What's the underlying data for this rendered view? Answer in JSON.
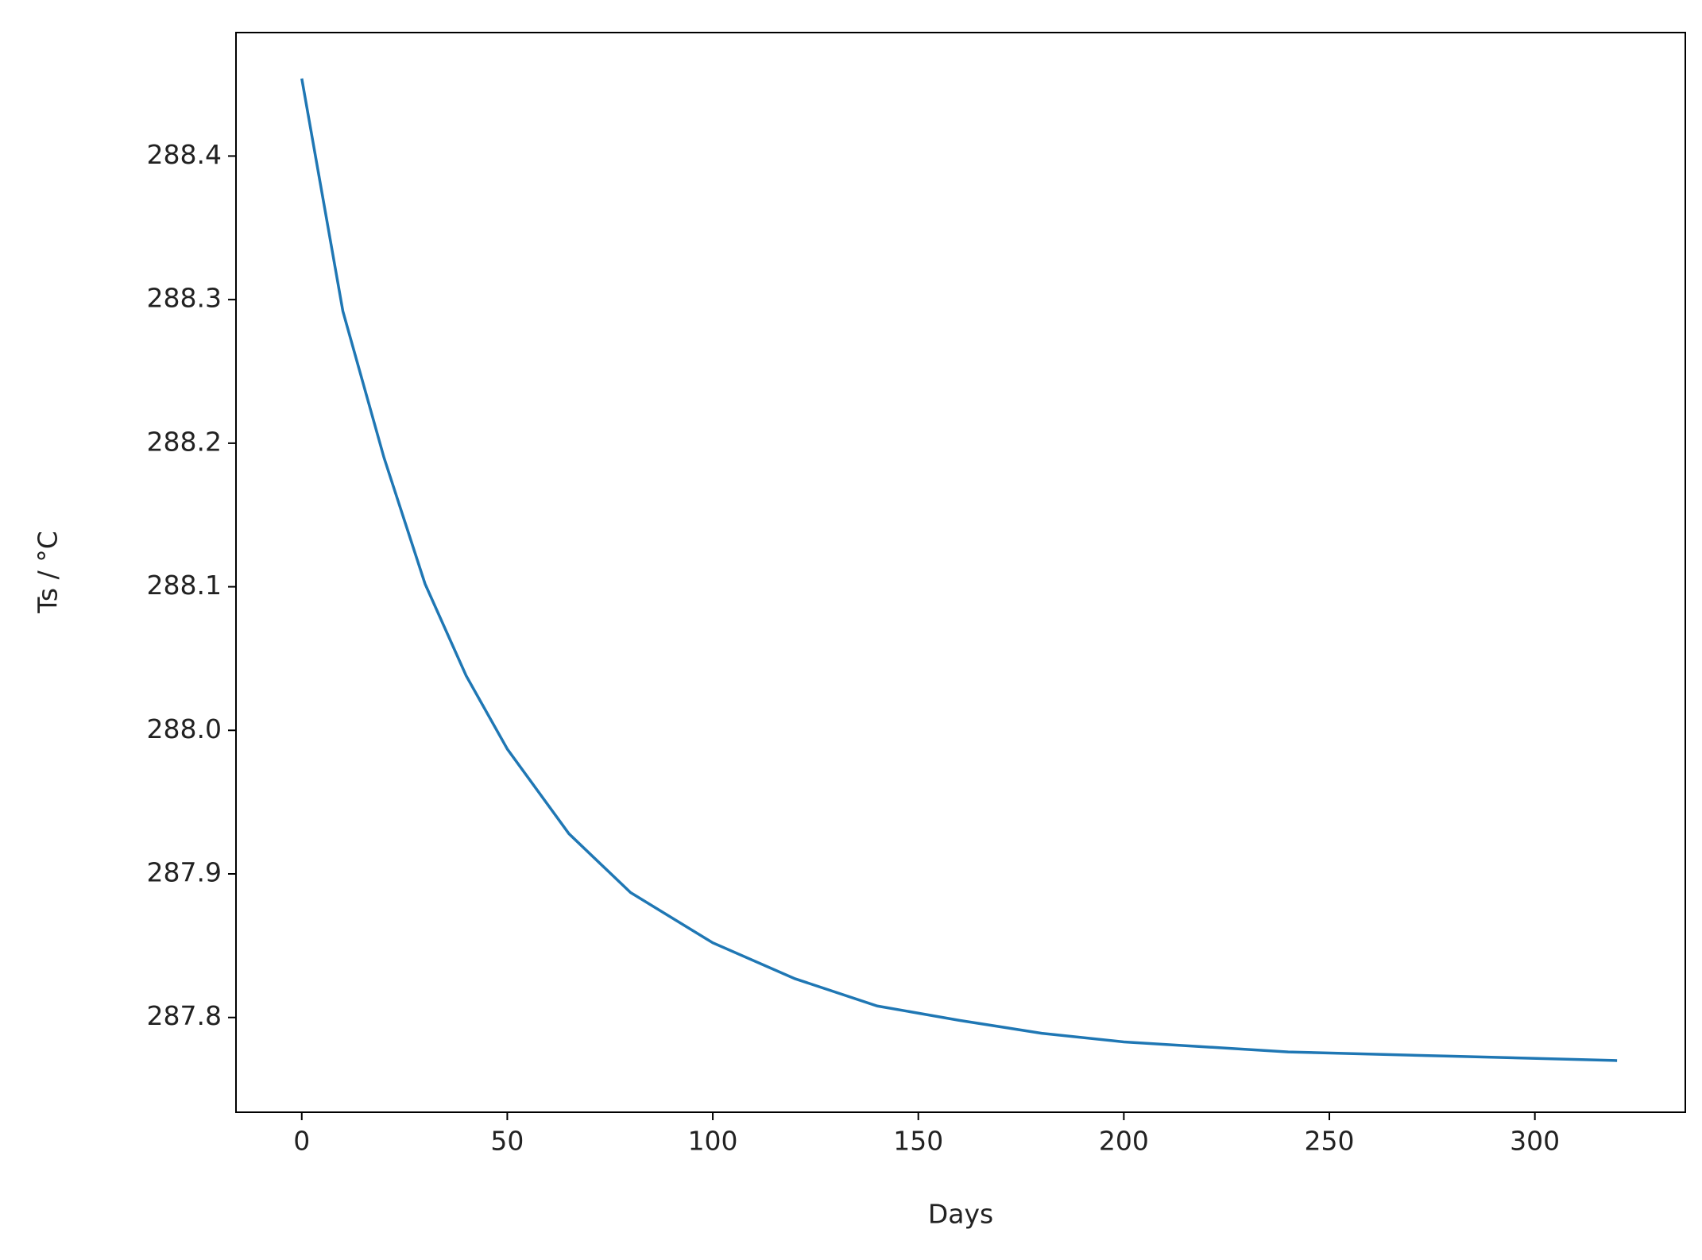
{
  "chart_data": {
    "type": "line",
    "xlabel": "Days",
    "ylabel": "Ts / °C",
    "x": [
      0,
      10,
      20,
      30,
      40,
      50,
      65,
      80,
      100,
      120,
      140,
      160,
      180,
      200,
      240,
      280,
      320
    ],
    "series": [
      {
        "color": "#1f77b4",
        "values": [
          288.454,
          288.292,
          288.19,
          288.102,
          288.038,
          287.987,
          287.928,
          287.887,
          287.852,
          287.827,
          287.808,
          287.798,
          287.789,
          287.783,
          287.776,
          287.773,
          287.77
        ]
      }
    ],
    "xlim": [
      -16,
      336.6
    ],
    "ylim": [
      287.734,
      288.486
    ],
    "xticks": [
      0,
      50,
      100,
      150,
      200,
      250,
      300
    ],
    "yticks": [
      287.8,
      287.9,
      {
        "value": 288.0,
        "label": "288.0"
      },
      288.1,
      288.2,
      288.3,
      288.4
    ]
  }
}
